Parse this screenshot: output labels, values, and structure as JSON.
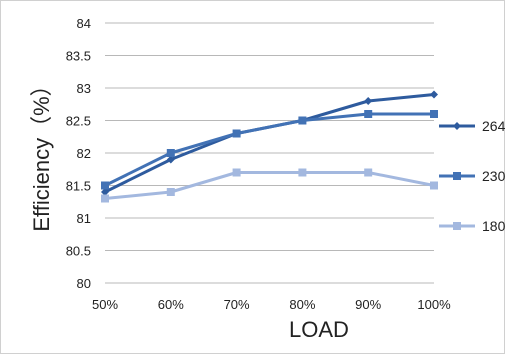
{
  "chart_data": {
    "type": "line",
    "title": "",
    "xlabel": "LOAD",
    "ylabel": "Efficiency（%）",
    "categories": [
      "50%",
      "60%",
      "70%",
      "80%",
      "90%",
      "100%"
    ],
    "y_ticks": [
      "80",
      "80.5",
      "81",
      "81.5",
      "82",
      "82.5",
      "83",
      "83.5",
      "84"
    ],
    "ylim": [
      80,
      84
    ],
    "grid": true,
    "legend_position": "right",
    "series": [
      {
        "name": "264",
        "color": "#2e5b9e",
        "marker": "diamond",
        "values": [
          81.4,
          81.9,
          82.3,
          82.5,
          82.8,
          82.9
        ]
      },
      {
        "name": "230",
        "color": "#4272b5",
        "marker": "square",
        "values": [
          81.5,
          82.0,
          82.3,
          82.5,
          82.6,
          82.6
        ]
      },
      {
        "name": "180",
        "color": "#a3b8df",
        "marker": "square",
        "values": [
          81.3,
          81.4,
          81.7,
          81.7,
          81.7,
          81.5
        ]
      }
    ]
  }
}
